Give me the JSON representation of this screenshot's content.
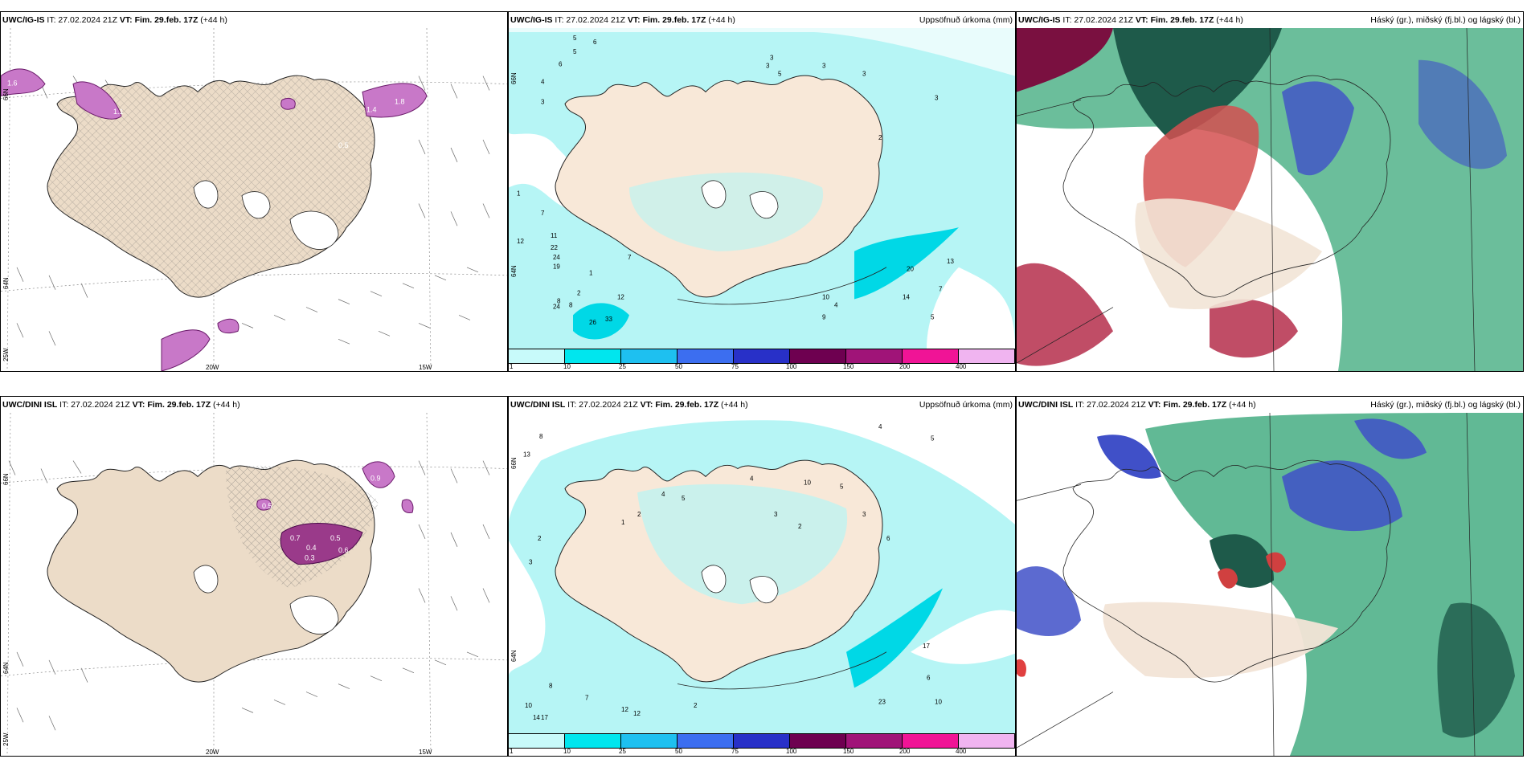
{
  "panels": {
    "p1": {
      "model": "UWC/IG-IS",
      "it": "IT: 27.02.2024 21Z",
      "vt_label": "VT:",
      "vt": "Fim. 29.feb. 17Z",
      "lead": "(+44 h)",
      "right": ""
    },
    "p2": {
      "model": "UWC/IG-IS",
      "it": "IT: 27.02.2024 21Z",
      "vt_label": "VT:",
      "vt": "Fim. 29.feb. 17Z",
      "lead": "(+44 h)",
      "right": "Uppsöfnuð úrkoma (mm)"
    },
    "p3": {
      "model": "UWC/IG-IS",
      "it": "IT: 27.02.2024 21Z",
      "vt_label": "VT:",
      "vt": "Fim. 29.feb. 17Z",
      "lead": "(+44 h)",
      "right": "Háský (gr.), miðský (fj.bl.) og lágský (bl.)"
    },
    "p4": {
      "model": "UWC/DINI ISL",
      "it": "IT: 27.02.2024 21Z",
      "vt_label": "VT:",
      "vt": "Fim. 29.feb. 17Z",
      "lead": "(+44 h)",
      "right": ""
    },
    "p5": {
      "model": "UWC/DINI ISL",
      "it": "IT: 27.02.2024 21Z",
      "vt_label": "VT:",
      "vt": "Fim. 29.feb. 17Z",
      "lead": "(+44 h)",
      "right": "Uppsöfnuð úrkoma (mm)"
    },
    "p6": {
      "model": "UWC/DINI ISL",
      "it": "IT: 27.02.2024 21Z",
      "vt_label": "VT:",
      "vt": "Fim. 29.feb. 17Z",
      "lead": "(+44 h)",
      "right": "Háský (gr.), miðský (fj.bl.) og lágský (bl.)"
    }
  },
  "axis_labels": {
    "lat66": "66N",
    "lat64": "64N",
    "lon25": "25W",
    "lon20": "20W",
    "lon15": "15W"
  },
  "colorbar": {
    "ticks": [
      "1",
      "10",
      "25",
      "50",
      "75",
      "100",
      "150",
      "200",
      "400"
    ],
    "colors": [
      "#c8fafa",
      "#00e6ee",
      "#1ec0f0",
      "#3c6ef0",
      "#2830c8",
      "#6e0050",
      "#a01478",
      "#f01496",
      "#f0b4f0"
    ]
  },
  "precip_values_top": [
    "6",
    "5",
    "6",
    "4",
    "3",
    "3",
    "5",
    "3",
    "3",
    "2",
    "3",
    "1",
    "1",
    "2",
    "4",
    "14",
    "20",
    "13",
    "7",
    "24",
    "12",
    "33",
    "26",
    "24",
    "19",
    "22",
    "11",
    "12",
    "7",
    "7",
    "8",
    "9",
    "10",
    "5",
    "3",
    "8",
    "5"
  ],
  "precip_values_bottom": [
    "8",
    "13",
    "2",
    "3",
    "2",
    "1",
    "4",
    "10",
    "5",
    "3",
    "6",
    "3",
    "2",
    "5",
    "17",
    "23",
    "6",
    "10",
    "12",
    "12",
    "17",
    "14",
    "10",
    "8",
    "7",
    "2",
    "4",
    "5",
    "4"
  ],
  "snow_values_top": [
    "1.6",
    "1.1",
    "1.4",
    "1.8",
    "0.5",
    "1.4",
    "0.7",
    "0.8",
    "0.4"
  ],
  "snow_values_bottom": [
    "0.7",
    "0.4",
    "0.5",
    "0.9",
    "0.3",
    "0.6",
    "0.5"
  ]
}
